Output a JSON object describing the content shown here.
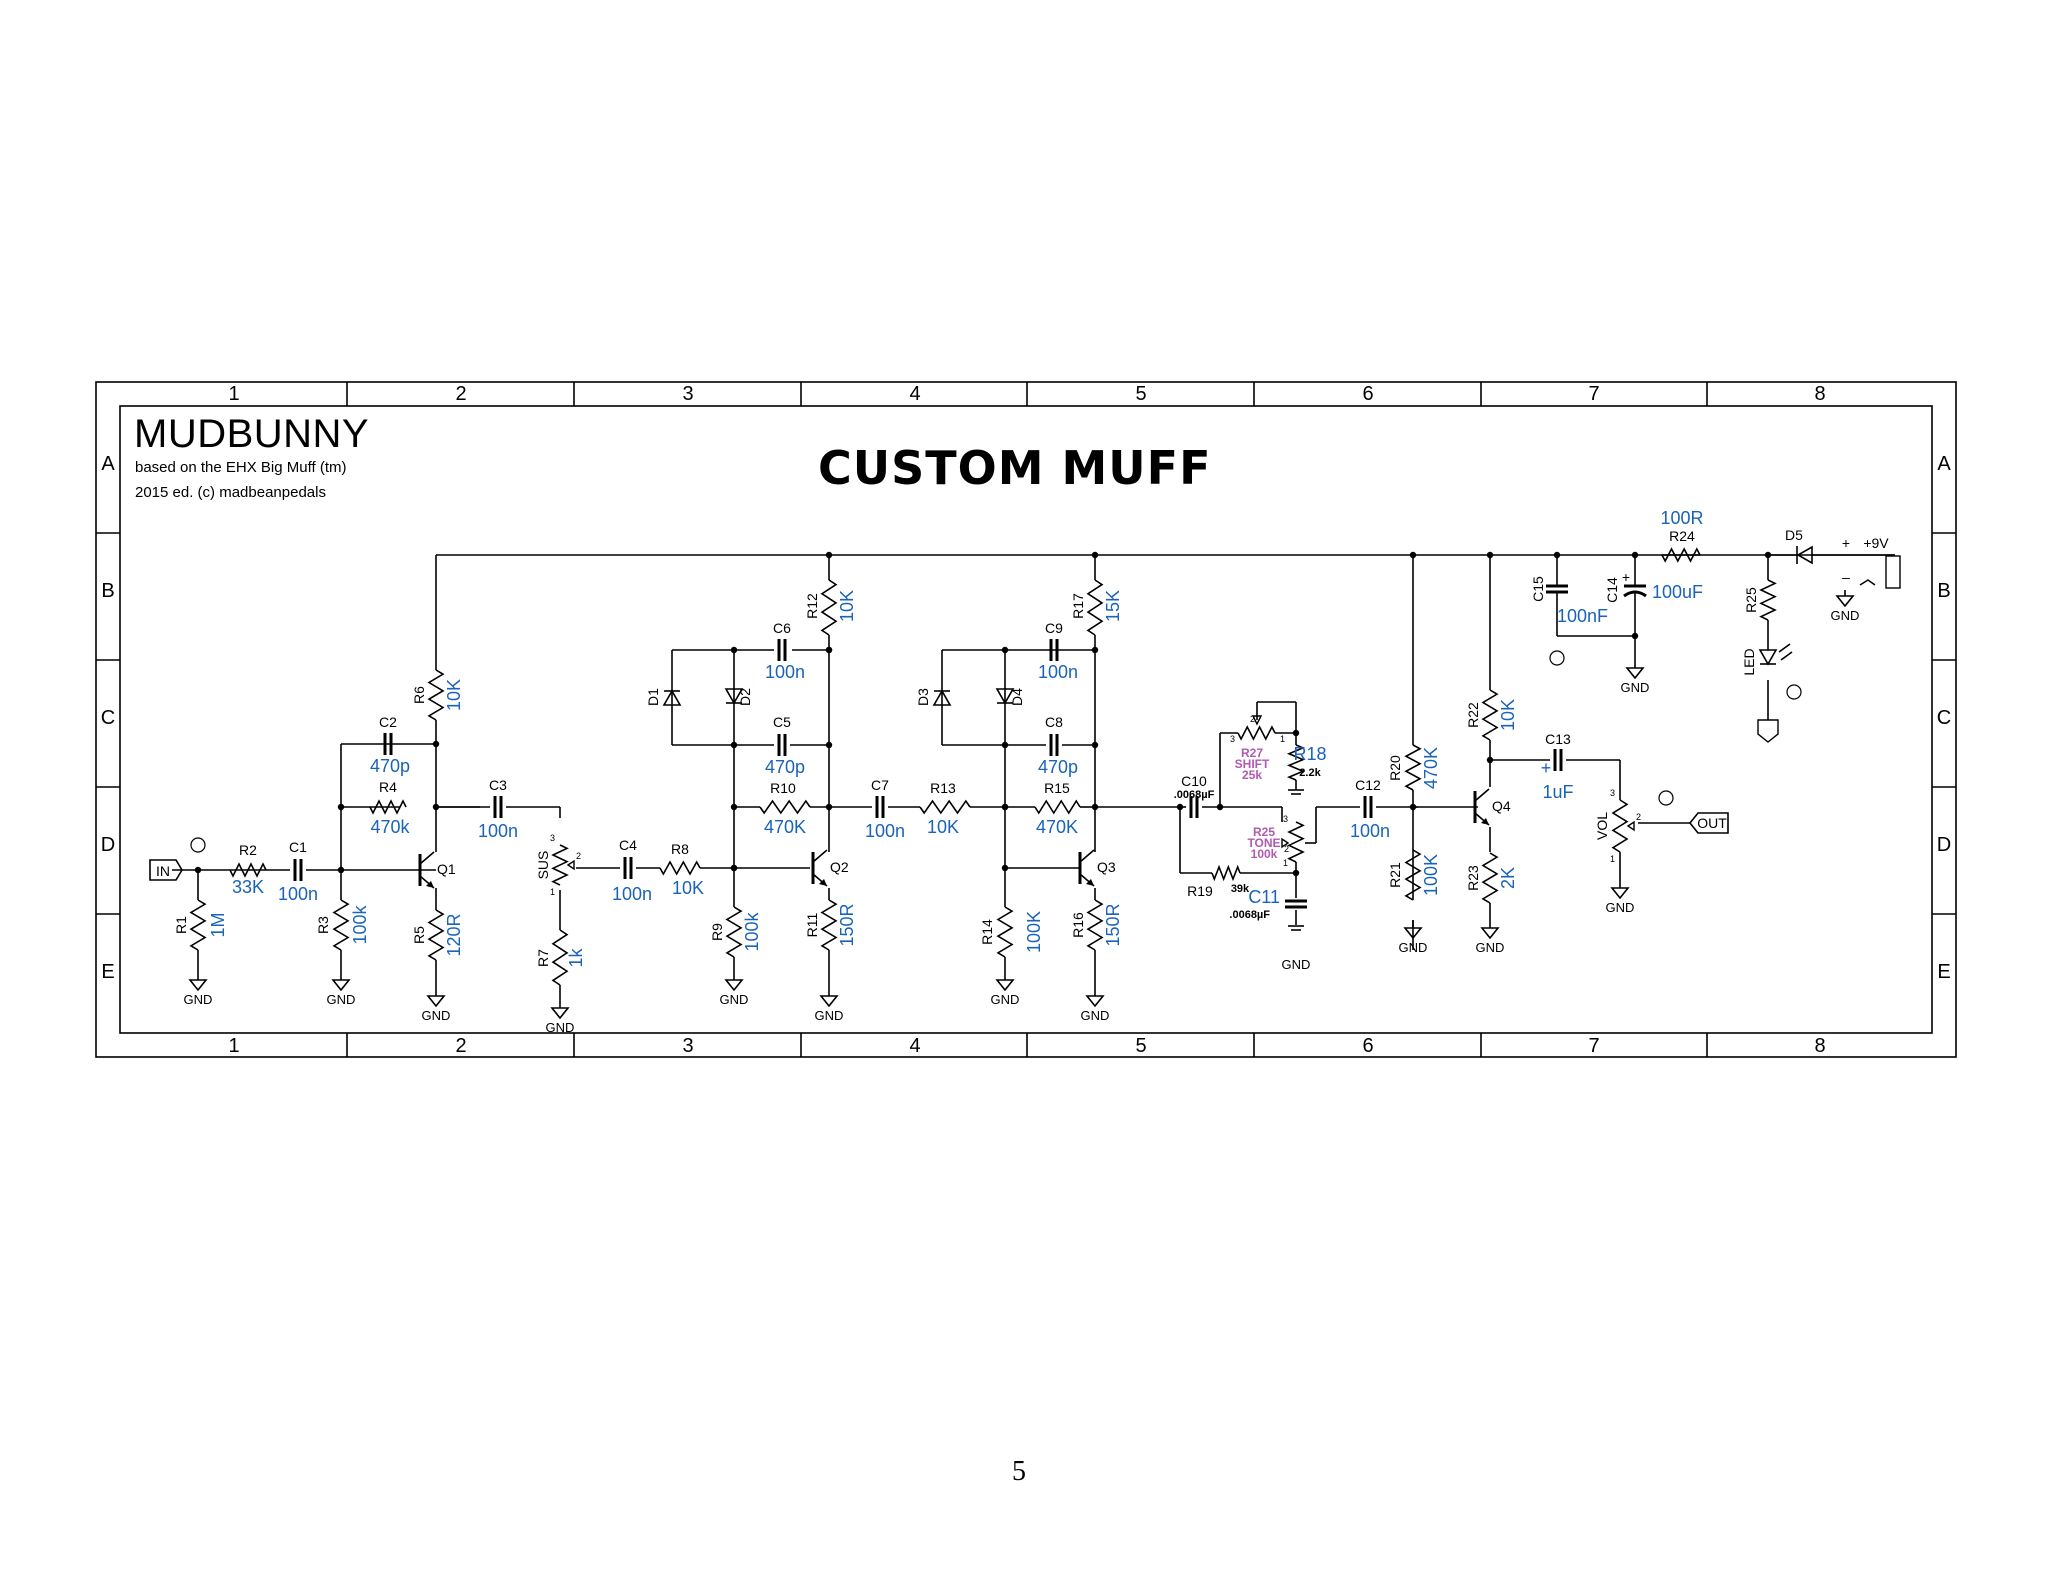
{
  "title_block": {
    "name": "MUDBUNNY",
    "based_on": "based on the EHX Big Muff (tm)",
    "edition": "2015 ed. (c) madbeanpedals",
    "banner": "CUSTOM MUFF"
  },
  "frame": {
    "columns": [
      "1",
      "2",
      "3",
      "4",
      "5",
      "6",
      "7",
      "8"
    ],
    "rows": [
      "A",
      "B",
      "C",
      "D",
      "E"
    ]
  },
  "ports": {
    "input": "IN",
    "output": "OUT",
    "supply": "+9V",
    "ground": "GND"
  },
  "components": {
    "R1": {
      "ref": "R1",
      "value": "1M"
    },
    "R2": {
      "ref": "R2",
      "value": "33K"
    },
    "R3": {
      "ref": "R3",
      "value": "100k"
    },
    "R4": {
      "ref": "R4",
      "value": "470k"
    },
    "R5": {
      "ref": "R5",
      "value": "120R"
    },
    "R6": {
      "ref": "R6",
      "value": "10K"
    },
    "R7": {
      "ref": "R7",
      "value": "1k"
    },
    "R8": {
      "ref": "R8",
      "value": "10K"
    },
    "R9": {
      "ref": "R9",
      "value": "100k"
    },
    "R10": {
      "ref": "R10",
      "value": "470K"
    },
    "R11": {
      "ref": "R11",
      "value": "150R"
    },
    "R12": {
      "ref": "R12",
      "value": "10K"
    },
    "R13": {
      "ref": "R13",
      "value": "10K"
    },
    "R14": {
      "ref": "R14",
      "value": "100K"
    },
    "R15": {
      "ref": "R15",
      "value": "470K"
    },
    "R16": {
      "ref": "R16",
      "value": "150R"
    },
    "R17": {
      "ref": "R17",
      "value": "15K"
    },
    "R18": {
      "ref": "R18",
      "value": "2.2k"
    },
    "R19": {
      "ref": "R19",
      "value": "39k"
    },
    "R20": {
      "ref": "R20",
      "value": "470K"
    },
    "R21": {
      "ref": "R21",
      "value": "100K"
    },
    "R22": {
      "ref": "R22",
      "value": "10K"
    },
    "R23": {
      "ref": "R23",
      "value": "2K"
    },
    "R24": {
      "ref": "R24",
      "value": "100R"
    },
    "R25": {
      "ref": "R25"
    },
    "R27": {
      "ref": "R27",
      "label": "SHIFT",
      "value": "25k"
    },
    "TONE": {
      "ref": "R25",
      "label": "TONE",
      "value": "100k"
    },
    "C1": {
      "ref": "C1",
      "value": "100n"
    },
    "C2": {
      "ref": "C2",
      "value": "470p"
    },
    "C3": {
      "ref": "C3",
      "value": "100n"
    },
    "C4": {
      "ref": "C4",
      "value": "100n"
    },
    "C5": {
      "ref": "C5",
      "value": "470p"
    },
    "C6": {
      "ref": "C6",
      "value": "100n"
    },
    "C7": {
      "ref": "C7",
      "value": "100n"
    },
    "C8": {
      "ref": "C8",
      "value": "470p"
    },
    "C9": {
      "ref": "C9",
      "value": "100n"
    },
    "C10": {
      "ref": "C10",
      "value": ".0068µF"
    },
    "C11": {
      "ref": "C11",
      "value": ".0068µF"
    },
    "C12": {
      "ref": "C12",
      "value": "100n"
    },
    "C13": {
      "ref": "C13",
      "value": "1uF"
    },
    "C14": {
      "ref": "C14",
      "value": "100uF"
    },
    "C15": {
      "ref": "C15",
      "value": "100nF"
    },
    "SUS": {
      "ref": "SUS"
    },
    "VOL": {
      "ref": "VOL"
    },
    "Q1": {
      "ref": "Q1"
    },
    "Q2": {
      "ref": "Q2"
    },
    "Q3": {
      "ref": "Q3"
    },
    "Q4": {
      "ref": "Q4"
    },
    "D1": {
      "ref": "D1"
    },
    "D2": {
      "ref": "D2"
    },
    "D3": {
      "ref": "D3"
    },
    "D4": {
      "ref": "D4"
    },
    "D5": {
      "ref": "D5"
    },
    "LED": {
      "ref": "LED"
    }
  },
  "page_number": "5"
}
